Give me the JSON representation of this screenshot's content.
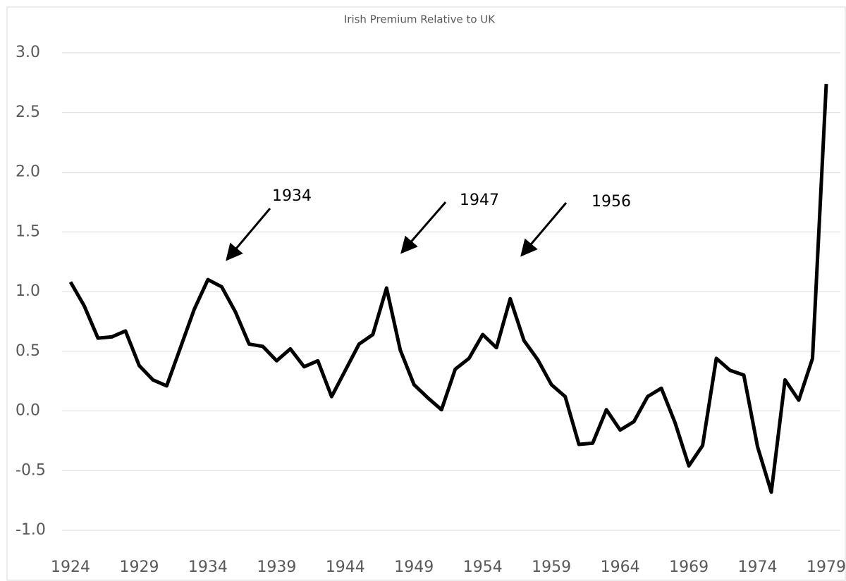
{
  "chart_data": {
    "type": "line",
    "title": "Irish Premium Relative to UK",
    "x": [
      1924,
      1925,
      1926,
      1927,
      1928,
      1929,
      1930,
      1931,
      1932,
      1933,
      1934,
      1935,
      1936,
      1937,
      1938,
      1939,
      1940,
      1941,
      1942,
      1943,
      1944,
      1945,
      1946,
      1947,
      1948,
      1949,
      1950,
      1951,
      1952,
      1953,
      1954,
      1955,
      1956,
      1957,
      1958,
      1959,
      1960,
      1961,
      1962,
      1963,
      1964,
      1965,
      1966,
      1967,
      1968,
      1969,
      1970,
      1971,
      1972,
      1973,
      1974,
      1975,
      1976,
      1977,
      1978,
      1979
    ],
    "series": [
      {
        "color": "#000000",
        "values": [
          1.08,
          0.88,
          0.61,
          0.62,
          0.67,
          0.38,
          0.26,
          0.21,
          0.53,
          0.85,
          1.1,
          1.04,
          0.83,
          0.56,
          0.54,
          0.42,
          0.52,
          0.37,
          0.42,
          0.12,
          0.34,
          0.56,
          0.64,
          1.03,
          0.51,
          0.22,
          0.11,
          0.01,
          0.35,
          0.44,
          0.64,
          0.53,
          0.94,
          0.59,
          0.43,
          0.22,
          0.12,
          -0.28,
          -0.27,
          0.01,
          -0.16,
          -0.09,
          0.12,
          0.19,
          -0.1,
          -0.46,
          -0.29,
          0.44,
          0.34,
          0.3,
          -0.3,
          -0.68,
          0.26,
          0.09,
          0.44,
          2.74
        ]
      }
    ],
    "xlim": [
      1924,
      1979
    ],
    "xticks": [
      1924,
      1929,
      1934,
      1939,
      1944,
      1949,
      1954,
      1959,
      1964,
      1969,
      1974,
      1979
    ],
    "ylim": [
      -1,
      3
    ],
    "yticks": [
      {
        "value": -1,
        "label": "-1.0"
      },
      {
        "value": -0.5,
        "label": "-0.5"
      },
      {
        "value": 0,
        "label": "0.0"
      },
      {
        "value": 0.5,
        "label": "0.5"
      },
      {
        "value": 1,
        "label": "1.0"
      },
      {
        "value": 1.5,
        "label": "1.5"
      },
      {
        "value": 2,
        "label": "2.0"
      },
      {
        "value": 2.5,
        "label": "2.5"
      },
      {
        "value": 3,
        "label": "3.0"
      }
    ],
    "grid": true,
    "annotations": [
      "1934",
      "1947",
      "1956"
    ]
  }
}
